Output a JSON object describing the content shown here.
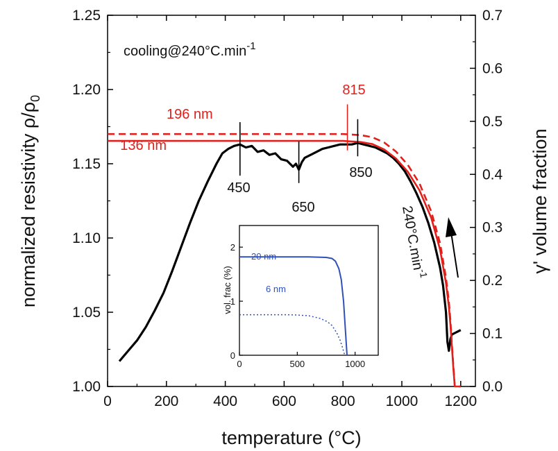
{
  "chart_data": [
    {
      "type": "line",
      "xlabel": "temperature (°C)",
      "ylabel_left": "normalized resistivity ρ/ρ",
      "ylabel_left_sub": "0",
      "ylabel_right": "γ' volume fraction",
      "xlim": [
        0,
        1250
      ],
      "ylim_left": [
        1.0,
        1.25
      ],
      "ylim_right": [
        0.0,
        0.7
      ],
      "x_ticks": [
        0,
        200,
        400,
        600,
        800,
        1000,
        1200
      ],
      "x_tick_labels": [
        "0",
        "200",
        "400",
        "600",
        "800",
        "1000",
        "1200"
      ],
      "y_left_ticks": [
        1.0,
        1.05,
        1.1,
        1.15,
        1.2,
        1.25
      ],
      "y_left_tick_labels": [
        "1.00",
        "1.05",
        "1.10",
        "1.15",
        "1.20",
        "1.25"
      ],
      "y_right_ticks": [
        0.0,
        0.1,
        0.2,
        0.3,
        0.4,
        0.5,
        0.6,
        0.7
      ],
      "y_right_tick_labels": [
        "0.0",
        "0.1",
        "0.2",
        "0.3",
        "0.4",
        "0.5",
        "0.6",
        "0.7"
      ],
      "grid": false,
      "annotations": {
        "condition_main": "cooling@240°C.min",
        "condition_sup": "-1",
        "rate_main": "240°C.min",
        "rate_sup": "-1",
        "peak_450": "450",
        "peak_650": "650",
        "peak_850": "850",
        "marker_815": "815",
        "size_196": "196 nm",
        "size_136": "136 nm"
      },
      "series": [
        {
          "name": "",
          "axis": "left",
          "color": "#000000",
          "style": "solid",
          "x": [
            40,
            70,
            100,
            130,
            160,
            190,
            220,
            250,
            280,
            310,
            340,
            370,
            390,
            410,
            430,
            450,
            470,
            490,
            510,
            530,
            550,
            570,
            590,
            610,
            630,
            640,
            650,
            660,
            670,
            690,
            710,
            730,
            750,
            770,
            790,
            810,
            830,
            850,
            870,
            890,
            910,
            930,
            950,
            970,
            990,
            1010,
            1030,
            1050,
            1070,
            1090,
            1110,
            1130,
            1140,
            1150,
            1155,
            1160,
            1165,
            1170,
            1180,
            1190,
            1200
          ],
          "y": [
            1.017,
            1.024,
            1.031,
            1.04,
            1.051,
            1.063,
            1.078,
            1.094,
            1.11,
            1.125,
            1.138,
            1.15,
            1.157,
            1.16,
            1.162,
            1.163,
            1.161,
            1.162,
            1.158,
            1.159,
            1.156,
            1.157,
            1.153,
            1.152,
            1.148,
            1.15,
            1.146,
            1.151,
            1.154,
            1.156,
            1.158,
            1.16,
            1.161,
            1.162,
            1.163,
            1.163,
            1.163,
            1.164,
            1.163,
            1.162,
            1.161,
            1.159,
            1.157,
            1.154,
            1.15,
            1.145,
            1.138,
            1.13,
            1.121,
            1.11,
            1.097,
            1.08,
            1.068,
            1.05,
            1.03,
            1.024,
            1.032,
            1.035,
            1.036,
            1.037,
            1.038
          ]
        },
        {
          "name": "",
          "axis": "right",
          "color": "#e0201b",
          "style": "dashed",
          "x": [
            0,
            200,
            400,
            600,
            800,
            860,
            900,
            940,
            980,
            1020,
            1060,
            1100,
            1130,
            1150,
            1160,
            1165,
            1170,
            1175,
            1180,
            1200
          ],
          "y": [
            0.476,
            0.476,
            0.476,
            0.476,
            0.476,
            0.474,
            0.47,
            0.46,
            0.443,
            0.418,
            0.383,
            0.33,
            0.27,
            0.205,
            0.16,
            0.125,
            0.08,
            0.04,
            0.0,
            0.0
          ]
        },
        {
          "name": "",
          "axis": "right",
          "color": "#e0201b",
          "style": "solid",
          "x": [
            0,
            200,
            400,
            600,
            800,
            860,
            900,
            940,
            980,
            1020,
            1060,
            1100,
            1130,
            1150,
            1160,
            1165,
            1170,
            1175,
            1180,
            1200
          ],
          "y": [
            0.463,
            0.463,
            0.463,
            0.463,
            0.463,
            0.461,
            0.457,
            0.447,
            0.43,
            0.405,
            0.37,
            0.318,
            0.258,
            0.195,
            0.15,
            0.117,
            0.075,
            0.035,
            0.0,
            0.0
          ]
        }
      ]
    },
    {
      "type": "line",
      "ylabel": "vol. frac (%)",
      "xlim": [
        0,
        1200
      ],
      "ylim": [
        0,
        2.4
      ],
      "x_ticks": [
        0,
        500,
        1000
      ],
      "x_tick_labels": [
        "0",
        "500",
        "1000"
      ],
      "y_ticks": [
        0,
        1,
        2
      ],
      "y_tick_labels": [
        "0",
        "1",
        "2"
      ],
      "series": [
        {
          "name": "20 nm",
          "color": "#3050b8",
          "style": "solid",
          "x": [
            0,
            200,
            400,
            600,
            750,
            800,
            830,
            860,
            880,
            900,
            915,
            930
          ],
          "y": [
            1.82,
            1.82,
            1.82,
            1.82,
            1.81,
            1.79,
            1.74,
            1.6,
            1.4,
            1.0,
            0.5,
            0.0
          ]
        },
        {
          "name": "6 nm",
          "color": "#3050b8",
          "style": "dotted",
          "x": [
            0,
            200,
            400,
            500,
            600,
            700,
            760,
            800,
            840,
            870,
            890,
            910
          ],
          "y": [
            0.75,
            0.75,
            0.75,
            0.745,
            0.73,
            0.68,
            0.62,
            0.55,
            0.42,
            0.28,
            0.15,
            0.0
          ]
        }
      ]
    }
  ]
}
